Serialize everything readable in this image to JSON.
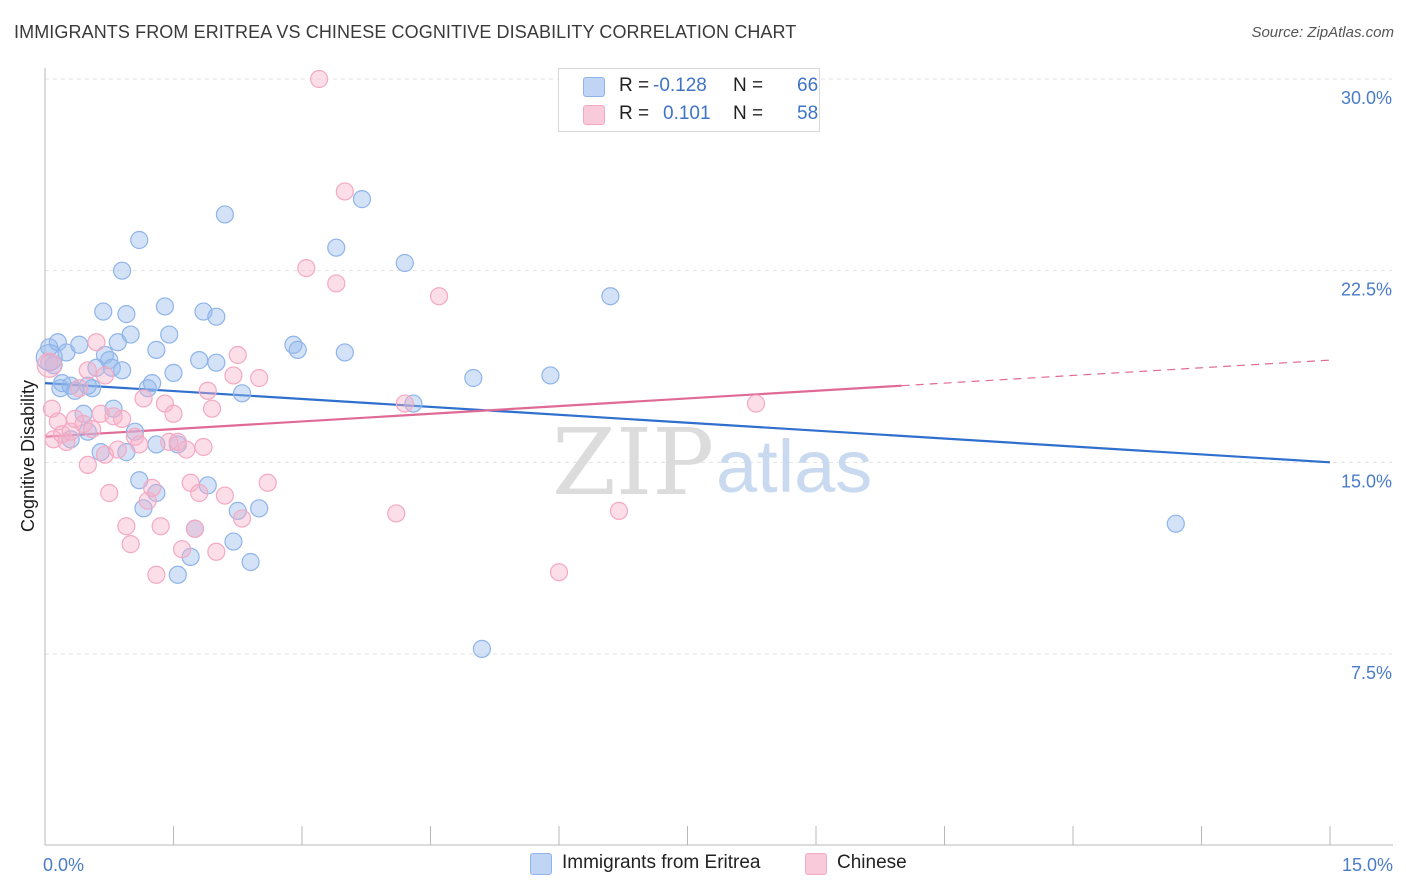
{
  "header": {
    "title": "IMMIGRANTS FROM ERITREA VS CHINESE COGNITIVE DISABILITY CORRELATION CHART",
    "source": "Source: ZipAtlas.com"
  },
  "legend": {
    "r_label": "R =",
    "n_label": "N =",
    "series": [
      {
        "r": "-0.128",
        "n": "66"
      },
      {
        "r": "0.101",
        "n": "58"
      }
    ]
  },
  "watermark": {
    "zip": "ZIP",
    "atlas": "atlas"
  },
  "chart_data": {
    "type": "scatter",
    "title": "IMMIGRANTS FROM ERITREA VS CHINESE COGNITIVE DISABILITY CORRELATION CHART",
    "xlabel": "",
    "ylabel": "Cognitive Disability",
    "xlim": [
      0,
      15
    ],
    "ylim": [
      0,
      31
    ],
    "x_ticks": [
      {
        "value": 0,
        "label": "0.0%"
      },
      {
        "value": 15,
        "label": "15.0%"
      }
    ],
    "y_ticks": [
      {
        "value": 7.5,
        "label": "7.5%"
      },
      {
        "value": 15,
        "label": "15.0%"
      },
      {
        "value": 22.5,
        "label": "22.5%"
      },
      {
        "value": 30,
        "label": "30.0%"
      }
    ],
    "grid": true,
    "series": [
      {
        "name": "Immigrants from Eritrea",
        "color": "#8fb4ea",
        "line_color": "#2f6fce",
        "trend": {
          "x0": 0,
          "y0": 18.1,
          "x1": 15,
          "y1": 15.0
        },
        "points": [
          [
            0.05,
            19.5
          ],
          [
            0.1,
            18.8
          ],
          [
            0.15,
            19.7
          ],
          [
            0.18,
            17.9
          ],
          [
            0.2,
            18.1
          ],
          [
            0.25,
            19.3
          ],
          [
            0.3,
            18.0
          ],
          [
            0.35,
            17.8
          ],
          [
            0.4,
            19.6
          ],
          [
            0.45,
            16.9
          ],
          [
            0.5,
            16.2
          ],
          [
            0.55,
            17.9
          ],
          [
            0.6,
            18.7
          ],
          [
            0.65,
            15.4
          ],
          [
            0.68,
            20.9
          ],
          [
            0.7,
            19.2
          ],
          [
            0.75,
            19.0
          ],
          [
            0.78,
            18.7
          ],
          [
            0.8,
            17.1
          ],
          [
            0.85,
            19.7
          ],
          [
            0.9,
            22.5
          ],
          [
            0.95,
            15.4
          ],
          [
            0.95,
            20.8
          ],
          [
            1.0,
            20.0
          ],
          [
            1.05,
            16.2
          ],
          [
            1.1,
            14.3
          ],
          [
            1.1,
            23.7
          ],
          [
            1.15,
            13.2
          ],
          [
            1.2,
            17.9
          ],
          [
            1.25,
            18.1
          ],
          [
            1.3,
            15.7
          ],
          [
            1.3,
            19.4
          ],
          [
            1.4,
            21.1
          ],
          [
            1.45,
            20.0
          ],
          [
            1.5,
            18.5
          ],
          [
            1.55,
            15.7
          ],
          [
            1.55,
            10.6
          ],
          [
            1.7,
            11.3
          ],
          [
            1.75,
            12.4
          ],
          [
            1.8,
            19.0
          ],
          [
            1.85,
            20.9
          ],
          [
            1.9,
            14.1
          ],
          [
            2.0,
            20.7
          ],
          [
            2.1,
            24.7
          ],
          [
            2.2,
            11.9
          ],
          [
            2.25,
            13.1
          ],
          [
            2.3,
            17.7
          ],
          [
            2.4,
            11.1
          ],
          [
            2.5,
            13.2
          ],
          [
            2.9,
            19.6
          ],
          [
            2.95,
            19.4
          ],
          [
            3.4,
            23.4
          ],
          [
            3.5,
            19.3
          ],
          [
            3.7,
            25.3
          ],
          [
            4.2,
            22.8
          ],
          [
            4.3,
            17.3
          ],
          [
            5.0,
            18.3
          ],
          [
            5.1,
            7.7
          ],
          [
            5.9,
            18.4
          ],
          [
            6.6,
            21.5
          ],
          [
            13.2,
            12.6
          ],
          [
            0.5,
            18.0
          ],
          [
            0.9,
            18.6
          ],
          [
            1.3,
            13.8
          ],
          [
            2.0,
            18.9
          ],
          [
            0.3,
            15.9
          ]
        ]
      },
      {
        "name": "Chinese",
        "color": "#f4a9c2",
        "line_color": "#e06a96",
        "trend": {
          "x0": 0,
          "y0": 16.0,
          "x1": 10.0,
          "y1": 18.0
        },
        "trend_ext": {
          "x0": 10.0,
          "y0": 18.0,
          "x1": 15,
          "y1": 19.0
        },
        "points": [
          [
            0.05,
            18.9
          ],
          [
            0.08,
            17.1
          ],
          [
            0.1,
            15.9
          ],
          [
            0.15,
            16.6
          ],
          [
            0.2,
            16.1
          ],
          [
            0.25,
            15.8
          ],
          [
            0.3,
            16.2
          ],
          [
            0.35,
            16.7
          ],
          [
            0.4,
            17.9
          ],
          [
            0.45,
            16.5
          ],
          [
            0.5,
            18.6
          ],
          [
            0.5,
            14.9
          ],
          [
            0.55,
            16.3
          ],
          [
            0.6,
            19.7
          ],
          [
            0.65,
            16.9
          ],
          [
            0.7,
            15.3
          ],
          [
            0.7,
            18.4
          ],
          [
            0.75,
            13.8
          ],
          [
            0.8,
            16.8
          ],
          [
            0.85,
            15.5
          ],
          [
            0.9,
            16.7
          ],
          [
            0.95,
            12.5
          ],
          [
            1.0,
            11.8
          ],
          [
            1.05,
            16.0
          ],
          [
            1.1,
            15.7
          ],
          [
            1.15,
            17.5
          ],
          [
            1.2,
            13.5
          ],
          [
            1.25,
            14.0
          ],
          [
            1.3,
            10.6
          ],
          [
            1.35,
            12.5
          ],
          [
            1.4,
            17.3
          ],
          [
            1.45,
            15.8
          ],
          [
            1.5,
            16.9
          ],
          [
            1.55,
            15.8
          ],
          [
            1.6,
            11.6
          ],
          [
            1.65,
            15.5
          ],
          [
            1.7,
            14.2
          ],
          [
            1.75,
            12.4
          ],
          [
            1.8,
            13.8
          ],
          [
            1.85,
            15.6
          ],
          [
            1.9,
            17.8
          ],
          [
            1.95,
            17.1
          ],
          [
            2.0,
            11.5
          ],
          [
            2.1,
            13.7
          ],
          [
            2.2,
            18.4
          ],
          [
            2.25,
            19.2
          ],
          [
            2.3,
            12.8
          ],
          [
            2.5,
            18.3
          ],
          [
            2.6,
            14.2
          ],
          [
            3.05,
            22.6
          ],
          [
            3.2,
            30.0
          ],
          [
            3.4,
            22.0
          ],
          [
            3.5,
            25.6
          ],
          [
            4.1,
            13.0
          ],
          [
            4.2,
            17.3
          ],
          [
            4.6,
            21.5
          ],
          [
            6.0,
            10.7
          ],
          [
            6.7,
            13.1
          ]
        ]
      }
    ]
  },
  "extra_point": {
    "series": 1,
    "x": 8.3,
    "y": 17.3
  }
}
